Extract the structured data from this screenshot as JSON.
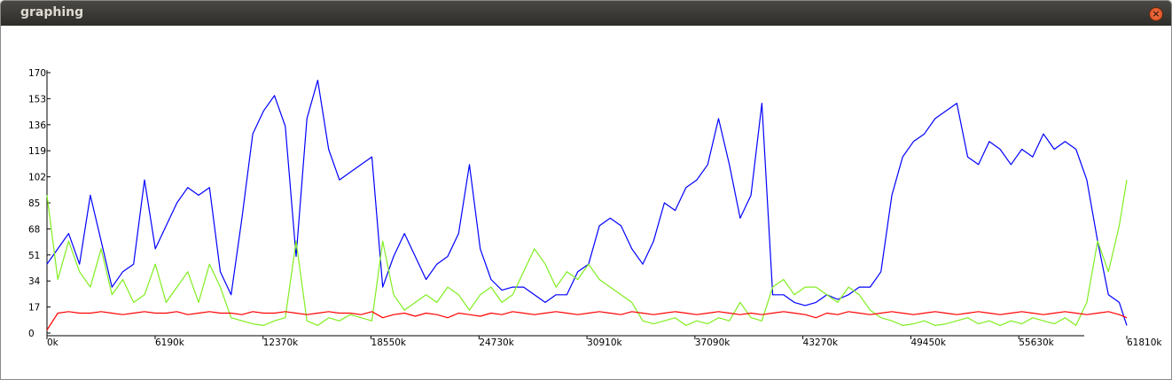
{
  "window_title": "graphing",
  "chart_data": {
    "type": "line",
    "x": [
      0,
      620,
      1240,
      1860,
      2480,
      3100,
      3720,
      4340,
      4960,
      5580,
      6200,
      6820,
      7440,
      8060,
      8680,
      9300,
      9920,
      10540,
      11160,
      11780,
      12400,
      13020,
      13640,
      14260,
      14880,
      15500,
      16120,
      16740,
      17360,
      17980,
      18600,
      19220,
      19840,
      20460,
      21080,
      21700,
      22320,
      22940,
      23560,
      24180,
      24800,
      25420,
      26040,
      26660,
      27280,
      27900,
      28520,
      29140,
      29760,
      30380,
      31000,
      31620,
      32240,
      32860,
      33480,
      34100,
      34720,
      35340,
      35960,
      36580,
      37200,
      37820,
      38440,
      39060,
      39680,
      40300,
      40920,
      41540,
      42160,
      42780,
      43400,
      44020,
      44640,
      45260,
      45880,
      46500,
      47120,
      47740,
      48360,
      48980,
      49600,
      50220,
      50840,
      51460,
      52080,
      52700,
      53320,
      53940,
      54560,
      55180,
      55800,
      56420,
      57040,
      57660,
      58280,
      58900,
      59520,
      60140,
      60760,
      61380,
      61810
    ],
    "series": [
      {
        "color": "#0000ff",
        "values": [
          45,
          55,
          65,
          45,
          90,
          60,
          30,
          40,
          45,
          100,
          55,
          70,
          85,
          95,
          90,
          95,
          40,
          25,
          75,
          130,
          145,
          155,
          135,
          50,
          140,
          165,
          120,
          100,
          105,
          110,
          115,
          30,
          50,
          65,
          50,
          35,
          45,
          50,
          65,
          110,
          55,
          35,
          28,
          30,
          30,
          25,
          20,
          25,
          25,
          40,
          45,
          70,
          75,
          70,
          55,
          45,
          60,
          85,
          80,
          95,
          100,
          110,
          140,
          110,
          75,
          90,
          150,
          25,
          25,
          20,
          18,
          20,
          25,
          22,
          25,
          30,
          30,
          40,
          90,
          115,
          125,
          130,
          140,
          145,
          150,
          115,
          110,
          125,
          120,
          110,
          120,
          115,
          130,
          120,
          125,
          120,
          100,
          60,
          25,
          20,
          5
        ]
      },
      {
        "color": "#80ee20",
        "values": [
          90,
          35,
          60,
          40,
          30,
          55,
          25,
          35,
          20,
          25,
          45,
          20,
          30,
          40,
          20,
          45,
          30,
          10,
          8,
          6,
          5,
          8,
          10,
          60,
          8,
          5,
          10,
          8,
          12,
          10,
          8,
          60,
          25,
          15,
          20,
          25,
          20,
          30,
          25,
          15,
          25,
          30,
          20,
          25,
          40,
          55,
          45,
          30,
          40,
          35,
          45,
          35,
          30,
          25,
          20,
          8,
          6,
          8,
          10,
          5,
          8,
          6,
          10,
          8,
          20,
          10,
          8,
          30,
          35,
          25,
          30,
          30,
          25,
          20,
          30,
          25,
          15,
          10,
          8,
          5,
          6,
          8,
          5,
          6,
          8,
          10,
          6,
          8,
          5,
          8,
          6,
          10,
          8,
          6,
          10,
          5,
          20,
          60,
          40,
          70,
          100
        ]
      },
      {
        "color": "#ff0000",
        "values": [
          2,
          13,
          14,
          13,
          13,
          14,
          13,
          12,
          13,
          14,
          13,
          13,
          14,
          12,
          13,
          14,
          13,
          13,
          12,
          14,
          13,
          13,
          14,
          13,
          12,
          13,
          14,
          13,
          13,
          12,
          14,
          10,
          12,
          13,
          11,
          13,
          12,
          10,
          13,
          12,
          11,
          13,
          12,
          14,
          13,
          12,
          13,
          14,
          13,
          12,
          13,
          14,
          13,
          12,
          14,
          13,
          12,
          13,
          14,
          13,
          12,
          13,
          14,
          13,
          12,
          13,
          12,
          13,
          14,
          13,
          12,
          10,
          13,
          12,
          14,
          13,
          12,
          13,
          14,
          13,
          12,
          13,
          14,
          13,
          12,
          13,
          14,
          13,
          12,
          13,
          14,
          13,
          12,
          13,
          14,
          13,
          12,
          13,
          14,
          12,
          10
        ]
      }
    ],
    "xlim": [
      0,
      61810
    ],
    "xticks": [
      {
        "value": 0,
        "label": "0k"
      },
      {
        "value": 6190,
        "label": "6190k"
      },
      {
        "value": 12370,
        "label": "12370k"
      },
      {
        "value": 18550,
        "label": "18550k"
      },
      {
        "value": 24730,
        "label": "24730k"
      },
      {
        "value": 30910,
        "label": "30910k"
      },
      {
        "value": 37090,
        "label": "37090k"
      },
      {
        "value": 43270,
        "label": "43270k"
      },
      {
        "value": 49450,
        "label": "49450k"
      },
      {
        "value": 55630,
        "label": "55630k"
      },
      {
        "value": 61810,
        "label": "61810k"
      }
    ],
    "ylim": [
      0,
      170
    ],
    "yticks": [
      0,
      17,
      34,
      51,
      68,
      85,
      102,
      119,
      136,
      153,
      170
    ]
  }
}
